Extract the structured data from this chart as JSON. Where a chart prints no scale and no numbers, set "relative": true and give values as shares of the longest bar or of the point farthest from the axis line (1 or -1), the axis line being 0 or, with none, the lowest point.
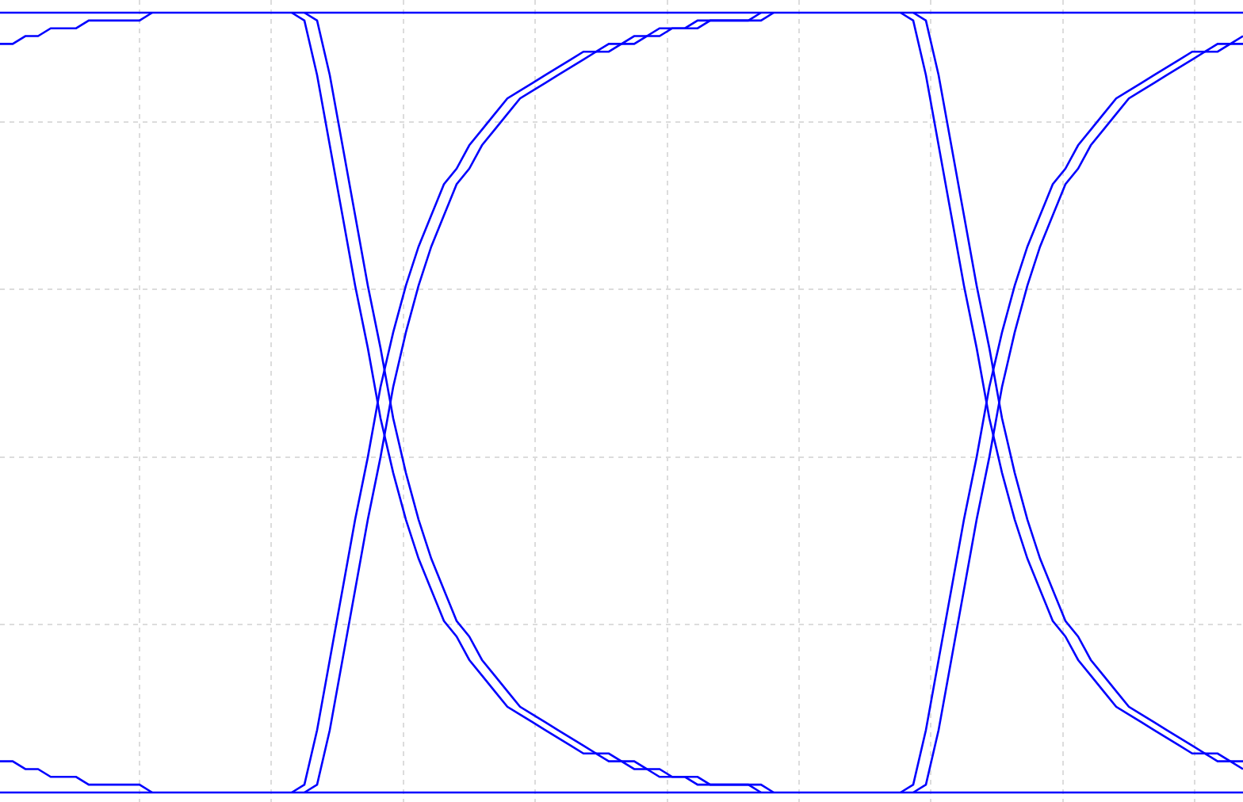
{
  "chart_data": {
    "type": "line",
    "relative": true,
    "grid": true,
    "categories": [
      null,
      null,
      null,
      null,
      null,
      null,
      null,
      null,
      null,
      null,
      null,
      null,
      null,
      null,
      null,
      null,
      null,
      null,
      null,
      null,
      null,
      null,
      null,
      null,
      null,
      null,
      null,
      null,
      null,
      null,
      null,
      null,
      null,
      null,
      null,
      null,
      null,
      null,
      null,
      null,
      null,
      null,
      null,
      null,
      null,
      null,
      null,
      null,
      null,
      null,
      null,
      null,
      null,
      null,
      null,
      null,
      null,
      null,
      null,
      null,
      null,
      null,
      null,
      null,
      null,
      null,
      null,
      null,
      null,
      null,
      null,
      null,
      null,
      null,
      null,
      null,
      null,
      null,
      null,
      null,
      null,
      null,
      null,
      null,
      null,
      null,
      null,
      null,
      null,
      null,
      null,
      null,
      null,
      null,
      null,
      null,
      null,
      null,
      null
    ],
    "series": [
      {
        "color": "#0000ff",
        "values": [
          1,
          1,
          1,
          1,
          1,
          1,
          1,
          1,
          1,
          1,
          1,
          1,
          1,
          1,
          1,
          1,
          1,
          1,
          1,
          1,
          1,
          1,
          1,
          1,
          1,
          1,
          1,
          1,
          1,
          1,
          1,
          1,
          1,
          1,
          1,
          1,
          1,
          1,
          1,
          1,
          1,
          1,
          1,
          1,
          1,
          1,
          1,
          1,
          1,
          1,
          1,
          1,
          1,
          1,
          1,
          1,
          1,
          1,
          1,
          1,
          1,
          1,
          1,
          1,
          1,
          1,
          1,
          1,
          1,
          1,
          1,
          1,
          1,
          1,
          1,
          1,
          1,
          1,
          1,
          1,
          1,
          1,
          1,
          1,
          1,
          1,
          1,
          1,
          1,
          1,
          1,
          1,
          1,
          1,
          1,
          1,
          1,
          1,
          1
        ]
      },
      {
        "color": "#0000ff",
        "values": [
          0,
          0,
          0,
          0,
          0,
          0,
          0,
          0,
          0,
          0,
          0,
          0,
          0,
          0,
          0,
          0,
          0,
          0,
          0,
          0,
          0,
          0,
          0,
          0,
          0,
          0,
          0,
          0,
          0,
          0,
          0,
          0,
          0,
          0,
          0,
          0,
          0,
          0,
          0,
          0,
          0,
          0,
          0,
          0,
          0,
          0,
          0,
          0,
          0,
          0,
          0,
          0,
          0,
          0,
          0,
          0,
          0,
          0,
          0,
          0,
          0,
          0,
          0,
          0,
          0,
          0,
          0,
          0,
          0,
          0,
          0,
          0,
          0,
          0,
          0,
          0,
          0,
          0,
          0,
          0,
          0,
          0,
          0,
          0,
          0,
          0,
          0,
          0,
          0,
          0,
          0,
          0,
          0,
          0,
          0,
          0,
          0,
          0,
          0
        ]
      },
      {
        "color": "#0000ff",
        "values": [
          0.04,
          0.04,
          0.03,
          0.03,
          0.02,
          0.02,
          0.02,
          0.01,
          0.01,
          0.01,
          0.01,
          0.01,
          0,
          null,
          null,
          null,
          null,
          null,
          null,
          null,
          null,
          null,
          null,
          1,
          0.99,
          0.92,
          0.83,
          0.74,
          0.65,
          0.57,
          0.48,
          0.41,
          0.35,
          0.3,
          0.26,
          0.22,
          0.2,
          0.17,
          0.15,
          0.13,
          0.11,
          0.1,
          0.09,
          0.08,
          0.07,
          0.06,
          0.05,
          0.05,
          0.04,
          0.04,
          0.03,
          0.03,
          0.02,
          0.02,
          0.02,
          0.01,
          0.01,
          0.01,
          0.01,
          0.01,
          0,
          null,
          null,
          null,
          null,
          null,
          null,
          null,
          null,
          null,
          null,
          1,
          0.99,
          0.92,
          0.83,
          0.74,
          0.65,
          0.57,
          0.48,
          0.41,
          0.35,
          0.3,
          0.26,
          0.22,
          0.2,
          0.17,
          0.15,
          0.13,
          0.11,
          0.1,
          0.09,
          0.08,
          0.07,
          0.06,
          0.05,
          0.05,
          0.04,
          0.04,
          0.03
        ]
      },
      {
        "color": "#0000ff",
        "values": [
          null,
          null,
          null,
          null,
          null,
          null,
          null,
          null,
          null,
          null,
          null,
          null,
          null,
          null,
          null,
          null,
          null,
          null,
          null,
          null,
          null,
          null,
          null,
          null,
          1,
          0.99,
          0.92,
          0.83,
          0.74,
          0.65,
          0.57,
          0.48,
          0.41,
          0.35,
          0.3,
          0.26,
          0.22,
          0.2,
          0.17,
          0.15,
          0.13,
          0.11,
          0.1,
          0.09,
          0.08,
          0.07,
          0.06,
          0.05,
          0.05,
          0.04,
          0.04,
          0.03,
          0.03,
          0.02,
          0.02,
          0.02,
          0.01,
          0.01,
          0.01,
          0.01,
          0.01,
          0,
          null,
          null,
          null,
          null,
          null,
          null,
          null,
          null,
          null,
          null,
          1,
          0.99,
          0.92,
          0.83,
          0.74,
          0.65,
          0.57,
          0.48,
          0.41,
          0.35,
          0.3,
          0.26,
          0.22,
          0.2,
          0.17,
          0.15,
          0.13,
          0.11,
          0.1,
          0.09,
          0.08,
          0.07,
          0.06,
          0.05,
          0.05,
          0.04,
          0.04
        ]
      },
      {
        "color": "#0000ff",
        "values": [
          0.96,
          0.96,
          0.97,
          0.97,
          0.98,
          0.98,
          0.98,
          0.99,
          0.99,
          0.99,
          0.99,
          0.99,
          1,
          null,
          null,
          null,
          null,
          null,
          null,
          null,
          null,
          null,
          null,
          0,
          0.01,
          0.08,
          0.17,
          0.26,
          0.35,
          0.43,
          0.52,
          0.59,
          0.65,
          0.7,
          0.74,
          0.78,
          0.8,
          0.83,
          0.85,
          0.87,
          0.89,
          0.9,
          0.91,
          0.92,
          0.93,
          0.94,
          0.95,
          0.95,
          0.96,
          0.96,
          0.97,
          0.97,
          0.98,
          0.98,
          0.98,
          0.99,
          0.99,
          0.99,
          0.99,
          0.99,
          1,
          null,
          null,
          null,
          null,
          null,
          null,
          null,
          null,
          null,
          null,
          0,
          0.01,
          0.08,
          0.17,
          0.26,
          0.35,
          0.43,
          0.52,
          0.59,
          0.65,
          0.7,
          0.74,
          0.78,
          0.8,
          0.83,
          0.85,
          0.87,
          0.89,
          0.9,
          0.91,
          0.92,
          0.93,
          0.94,
          0.95,
          0.95,
          0.96,
          0.96,
          0.97
        ]
      },
      {
        "color": "#0000ff",
        "values": [
          null,
          null,
          null,
          null,
          null,
          null,
          null,
          null,
          null,
          null,
          null,
          null,
          null,
          null,
          null,
          null,
          null,
          null,
          null,
          null,
          null,
          null,
          null,
          null,
          0,
          0.01,
          0.08,
          0.17,
          0.26,
          0.35,
          0.43,
          0.52,
          0.59,
          0.65,
          0.7,
          0.74,
          0.78,
          0.8,
          0.83,
          0.85,
          0.87,
          0.89,
          0.9,
          0.91,
          0.92,
          0.93,
          0.94,
          0.95,
          0.95,
          0.96,
          0.96,
          0.97,
          0.97,
          0.98,
          0.98,
          0.98,
          0.99,
          0.99,
          0.99,
          0.99,
          0.99,
          1,
          null,
          null,
          null,
          null,
          null,
          null,
          null,
          null,
          null,
          null,
          0,
          0.01,
          0.08,
          0.17,
          0.26,
          0.35,
          0.43,
          0.52,
          0.59,
          0.65,
          0.7,
          0.74,
          0.78,
          0.8,
          0.83,
          0.85,
          0.87,
          0.89,
          0.9,
          0.91,
          0.92,
          0.93,
          0.94,
          0.95,
          0.95,
          0.96,
          0.96
        ]
      }
    ]
  }
}
